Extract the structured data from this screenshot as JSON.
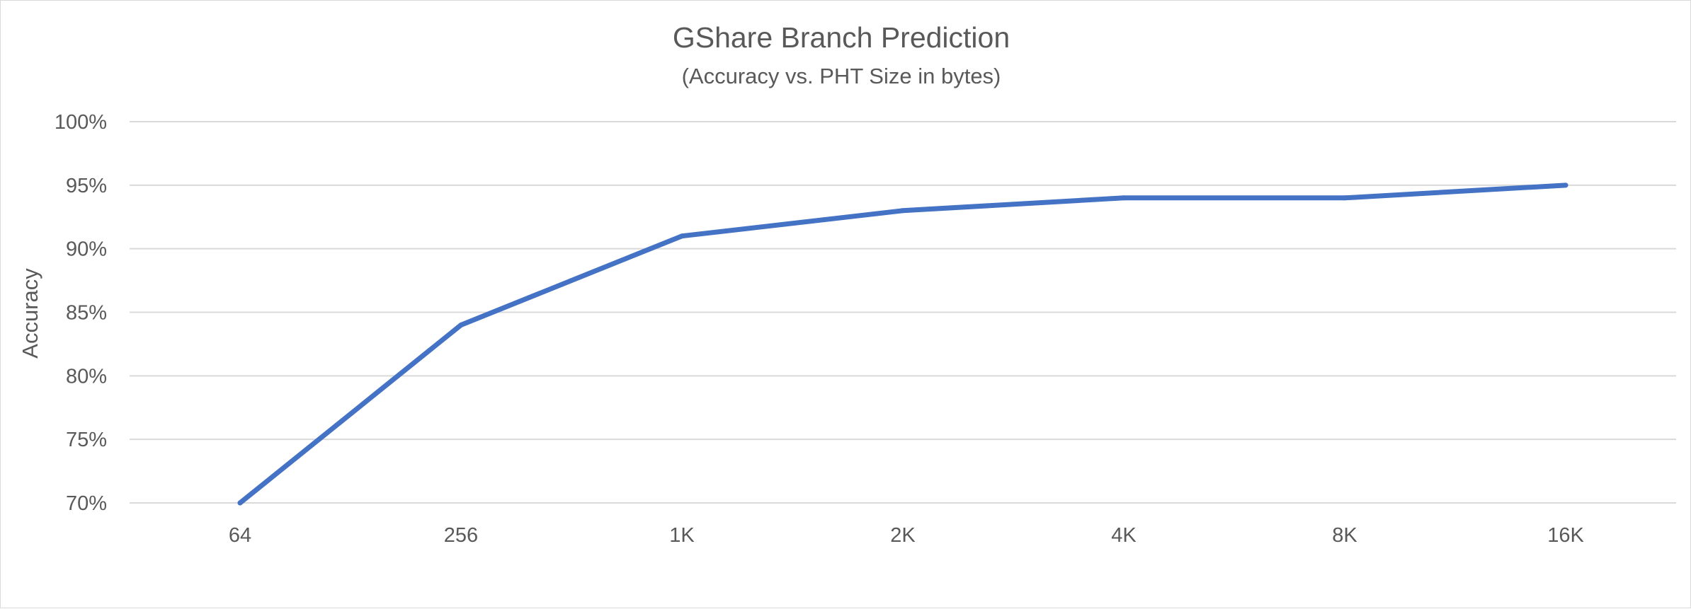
{
  "chart_data": {
    "type": "line",
    "title": "GShare Branch Prediction",
    "subtitle": "(Accuracy vs. PHT Size in bytes)",
    "xlabel": "",
    "ylabel": "Accuracy",
    "categories": [
      "64",
      "256",
      "1K",
      "2K",
      "4K",
      "8K",
      "16K"
    ],
    "series": [
      {
        "values": [
          70,
          84,
          91,
          93,
          94,
          94,
          95
        ],
        "color": "#4472C4"
      }
    ],
    "ylim": [
      70,
      100
    ],
    "y_ticks": [
      {
        "value": 100,
        "label": "100%"
      },
      {
        "value": 95,
        "label": "95%"
      },
      {
        "value": 90,
        "label": "90%"
      },
      {
        "value": 85,
        "label": "85%"
      },
      {
        "value": 80,
        "label": "80%"
      },
      {
        "value": 75,
        "label": "75%"
      },
      {
        "value": 70,
        "label": "70%"
      }
    ],
    "grid": true,
    "legend": "none"
  }
}
